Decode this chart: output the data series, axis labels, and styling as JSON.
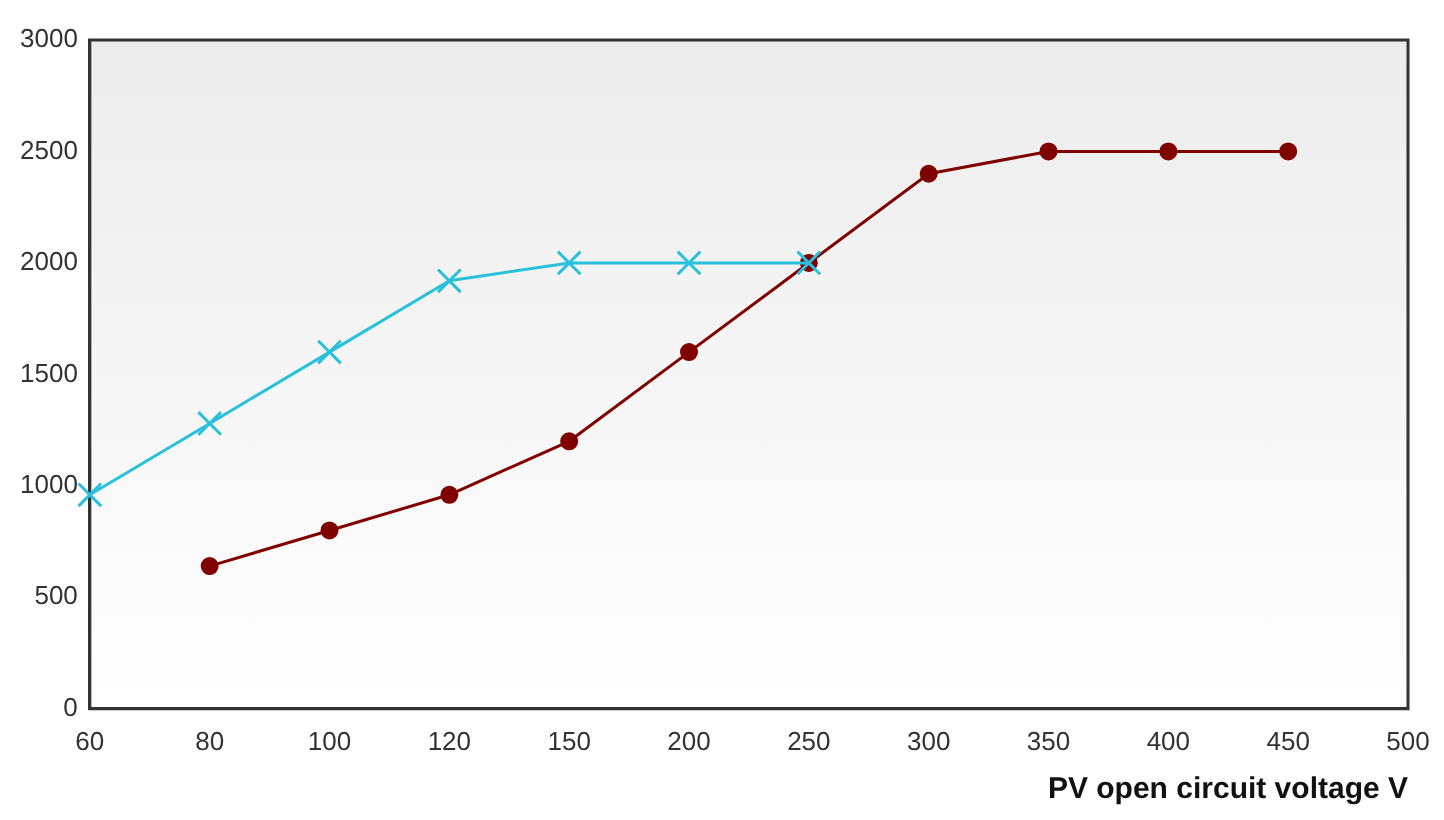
{
  "chart_data": {
    "type": "line",
    "xlabel": "PV open circuit voltage V",
    "categories": [
      "60",
      "80",
      "100",
      "120",
      "150",
      "200",
      "250",
      "300",
      "350",
      "400",
      "450",
      "500"
    ],
    "series": [
      {
        "color": "#29c0dc",
        "marker": "cross",
        "values": [
          960,
          1280,
          1600,
          1920,
          2000,
          2000,
          2000,
          null,
          null,
          null,
          null,
          null
        ]
      },
      {
        "color": "#800000",
        "marker": "circle",
        "values": [
          null,
          640,
          800,
          960,
          1200,
          1600,
          2000,
          2400,
          2500,
          2500,
          2500,
          null
        ]
      }
    ],
    "ylim": [
      0,
      3000
    ],
    "yticks": [
      0,
      500,
      1000,
      1500,
      2000,
      2500,
      3000
    ],
    "grid": false,
    "legend": false,
    "line_style": "solid"
  }
}
